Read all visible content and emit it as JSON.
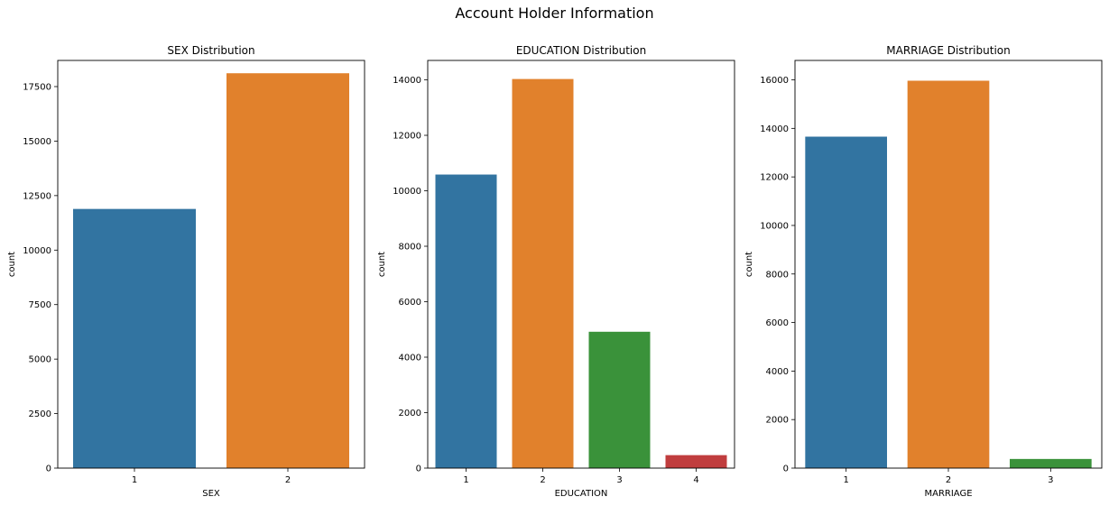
{
  "figure": {
    "title": "Account Holder Information"
  },
  "chart_data": [
    {
      "type": "bar",
      "title": "SEX Distribution",
      "xlabel": "SEX",
      "ylabel": "count",
      "categories": [
        "1",
        "2"
      ],
      "values": [
        11888,
        18112
      ],
      "colors": [
        "#3274a1",
        "#e1812c"
      ],
      "ylim": [
        0,
        18700
      ],
      "yticks": [
        0,
        2500,
        5000,
        7500,
        10000,
        12500,
        15000,
        17500
      ],
      "grid": false
    },
    {
      "type": "bar",
      "title": "EDUCATION Distribution",
      "xlabel": "EDUCATION",
      "ylabel": "count",
      "categories": [
        "1",
        "2",
        "3",
        "4"
      ],
      "values": [
        10585,
        14030,
        4917,
        468
      ],
      "colors": [
        "#3274a1",
        "#e1812c",
        "#3a923a",
        "#c03d3e"
      ],
      "ylim": [
        0,
        14700
      ],
      "yticks": [
        0,
        2000,
        4000,
        6000,
        8000,
        10000,
        12000,
        14000
      ],
      "grid": false
    },
    {
      "type": "bar",
      "title": "MARRIAGE Distribution",
      "xlabel": "MARRIAGE",
      "ylabel": "count",
      "categories": [
        "1",
        "2",
        "3"
      ],
      "values": [
        13659,
        15964,
        377
      ],
      "colors": [
        "#3274a1",
        "#e1812c",
        "#3a923a"
      ],
      "ylim": [
        0,
        16800
      ],
      "yticks": [
        0,
        2000,
        4000,
        6000,
        8000,
        10000,
        12000,
        14000,
        16000
      ],
      "grid": false
    }
  ]
}
